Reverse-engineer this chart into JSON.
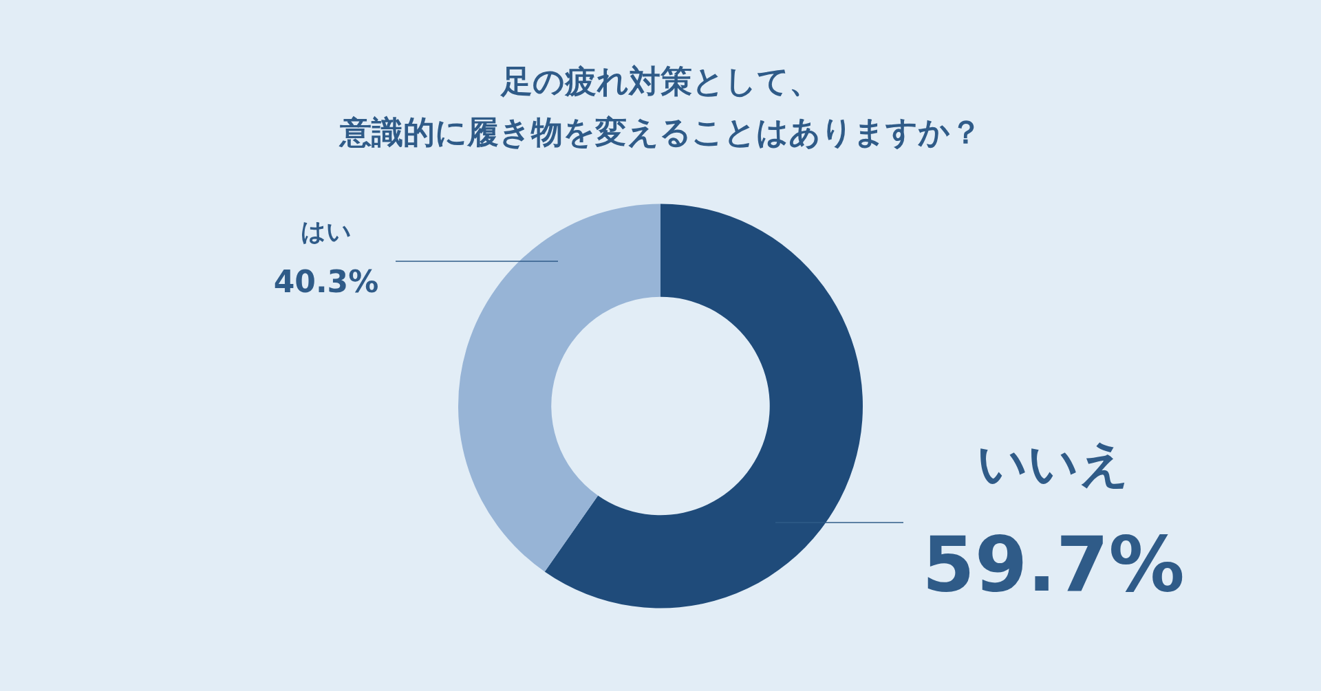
{
  "chart_data": {
    "type": "donut",
    "title": "足の疲れ対策として、",
    "subtitle": "意識的に履き物を変えることはありますか？",
    "categories": [
      "いいえ",
      "はい"
    ],
    "values": [
      59.7,
      40.3
    ],
    "colors": [
      "#1f4b7a",
      "#97b4d6"
    ],
    "value_labels": [
      "59.7%",
      "40.3%"
    ],
    "legend": false
  }
}
